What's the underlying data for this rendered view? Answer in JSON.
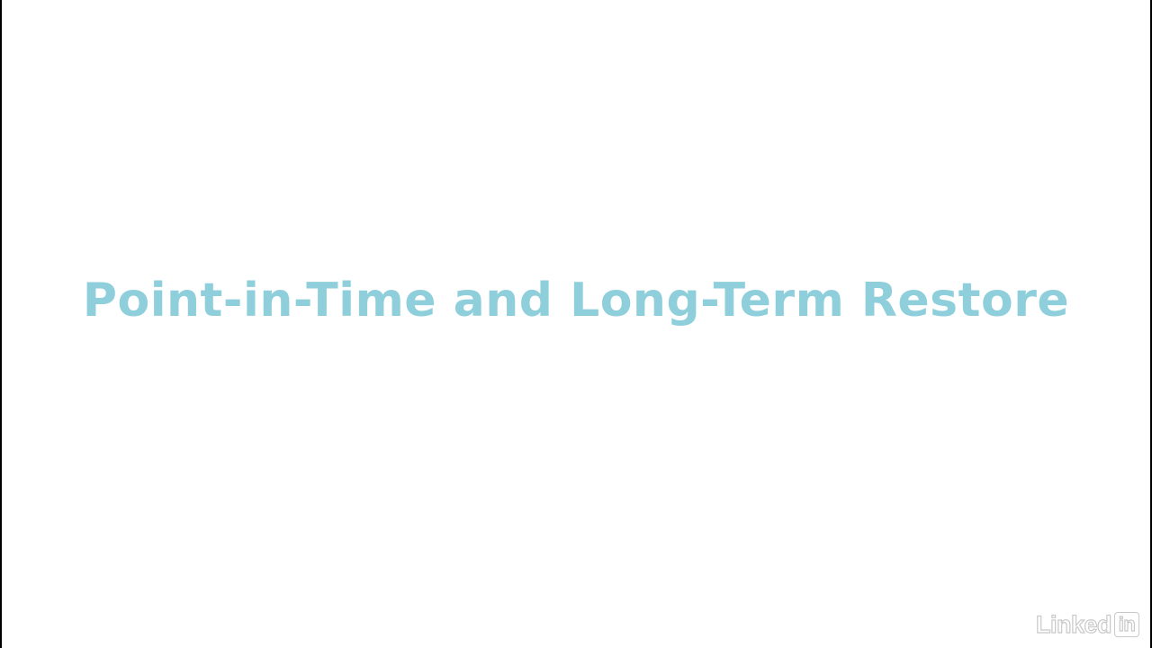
{
  "slide": {
    "title": "Point-in-Time and Long-Term Restore",
    "title_color": "#8ecfdb",
    "background_color": "#ffffff"
  },
  "watermark": {
    "brand_word": "Linked",
    "brand_box": "in",
    "color": "#c9c9c9"
  }
}
